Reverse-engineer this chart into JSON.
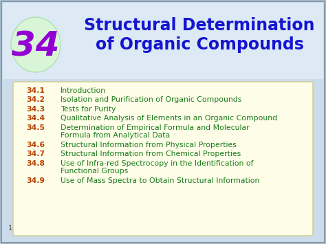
{
  "title_line1": "Structural Determination",
  "title_line2": "of Organic Compounds",
  "chapter_num": "34",
  "title_color": "#1515d0",
  "chapter_num_color": "#9400D3",
  "bg_color": "#b8cfe0",
  "header_bg_color": "#c8dcea",
  "content_box_color": "#fefee8",
  "section_num_color": "#b84000",
  "section_text_color": "#1a7a1a",
  "sections": [
    {
      "num": "34.1",
      "text": [
        "Introduction"
      ]
    },
    {
      "num": "34.2",
      "text": [
        "Isolation and Purification of Organic Compounds"
      ]
    },
    {
      "num": "34.3",
      "text": [
        "Tests for Purity"
      ]
    },
    {
      "num": "34.4",
      "text": [
        "Qualitative Analysis of Elements in an Organic Compound"
      ]
    },
    {
      "num": "34.5",
      "text": [
        "Determination of Empirical Formula and Molecular",
        "Formula from Analytical Data"
      ]
    },
    {
      "num": "34.6",
      "text": [
        "Structural Information from Physical Properties"
      ]
    },
    {
      "num": "34.7",
      "text": [
        "Structural Information from Chemical Properties"
      ]
    },
    {
      "num": "34.8",
      "text": [
        "Use of Infra-red Spectrocopy in the Identification of",
        "Functional Groups"
      ]
    },
    {
      "num": "34.9",
      "text": [
        "Use of Mass Spectra to Obtain Structural Information"
      ]
    }
  ],
  "page_num": "1",
  "figsize": [
    4.74,
    3.55
  ],
  "dpi": 100
}
